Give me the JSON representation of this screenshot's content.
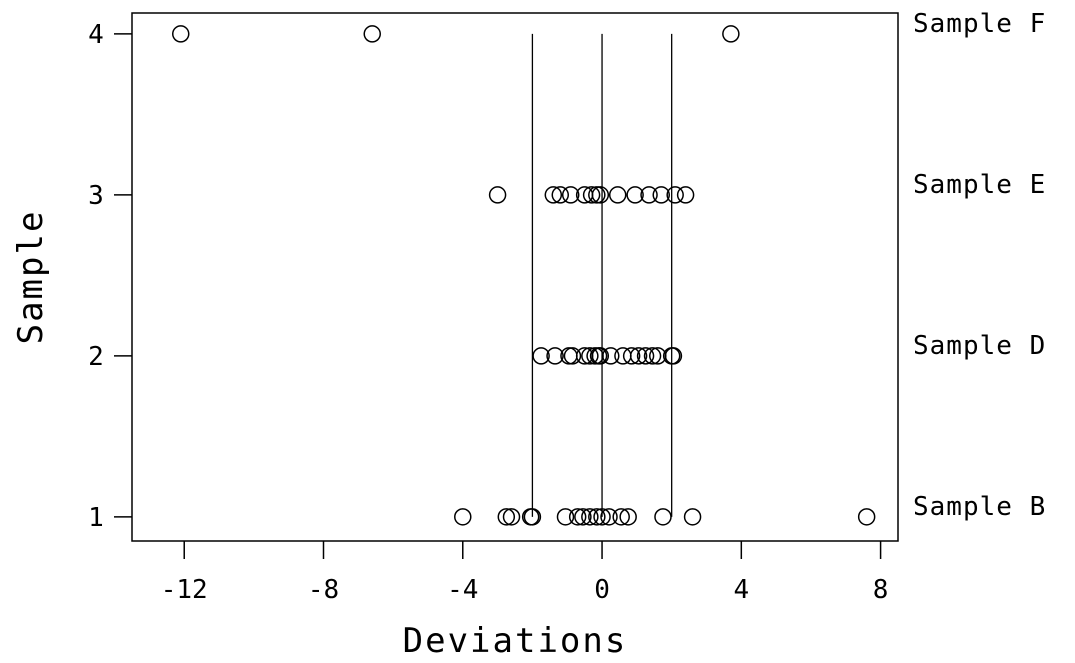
{
  "chart_data": {
    "type": "scatter",
    "title": "",
    "xlabel": "Deviations",
    "ylabel": "Sample",
    "xlim": [
      -13.5,
      8.5
    ],
    "ylim": [
      0.85,
      4.13
    ],
    "x_ticks": [
      -12,
      -8,
      -4,
      0,
      4,
      8
    ],
    "x_tick_labels": [
      "-12",
      "-8",
      "-4",
      "0",
      "4",
      "8"
    ],
    "y_ticks": [
      1,
      2,
      3,
      4
    ],
    "y_tick_labels": [
      "1",
      "2",
      "3",
      "4"
    ],
    "grid": false,
    "legend": "none",
    "reference_lines": {
      "x": [
        -2,
        0,
        2
      ],
      "y_range": [
        1,
        4
      ],
      "color": "#000000"
    },
    "right_labels": [
      {
        "y": 4,
        "text": "Sample F"
      },
      {
        "y": 3,
        "text": "Sample E"
      },
      {
        "y": 2,
        "text": "Sample D"
      },
      {
        "y": 1,
        "text": "Sample B"
      }
    ],
    "marker": {
      "shape": "open-circle",
      "color": "#000000"
    },
    "series": [
      {
        "y": 4,
        "x": [
          -12.1,
          -6.6,
          3.7
        ]
      },
      {
        "y": 3,
        "x": [
          -3.0,
          -1.4,
          -1.2,
          -0.9,
          -0.5,
          -0.3,
          -0.15,
          -0.05,
          0.45,
          0.95,
          1.35,
          1.7,
          2.1,
          2.4
        ]
      },
      {
        "y": 2,
        "x": [
          -1.75,
          -1.35,
          -0.95,
          -0.85,
          -0.5,
          -0.35,
          -0.2,
          -0.05,
          -0.1,
          0.25,
          0.6,
          0.85,
          1.05,
          1.25,
          1.45,
          1.6,
          2.0,
          2.05
        ]
      },
      {
        "y": 1,
        "x": [
          -4.0,
          -2.75,
          -2.6,
          -2.05,
          -2.0,
          -1.05,
          -0.7,
          -0.55,
          -0.35,
          -0.15,
          0.0,
          0.2,
          0.55,
          0.75,
          1.75,
          2.6,
          7.6
        ]
      }
    ]
  }
}
